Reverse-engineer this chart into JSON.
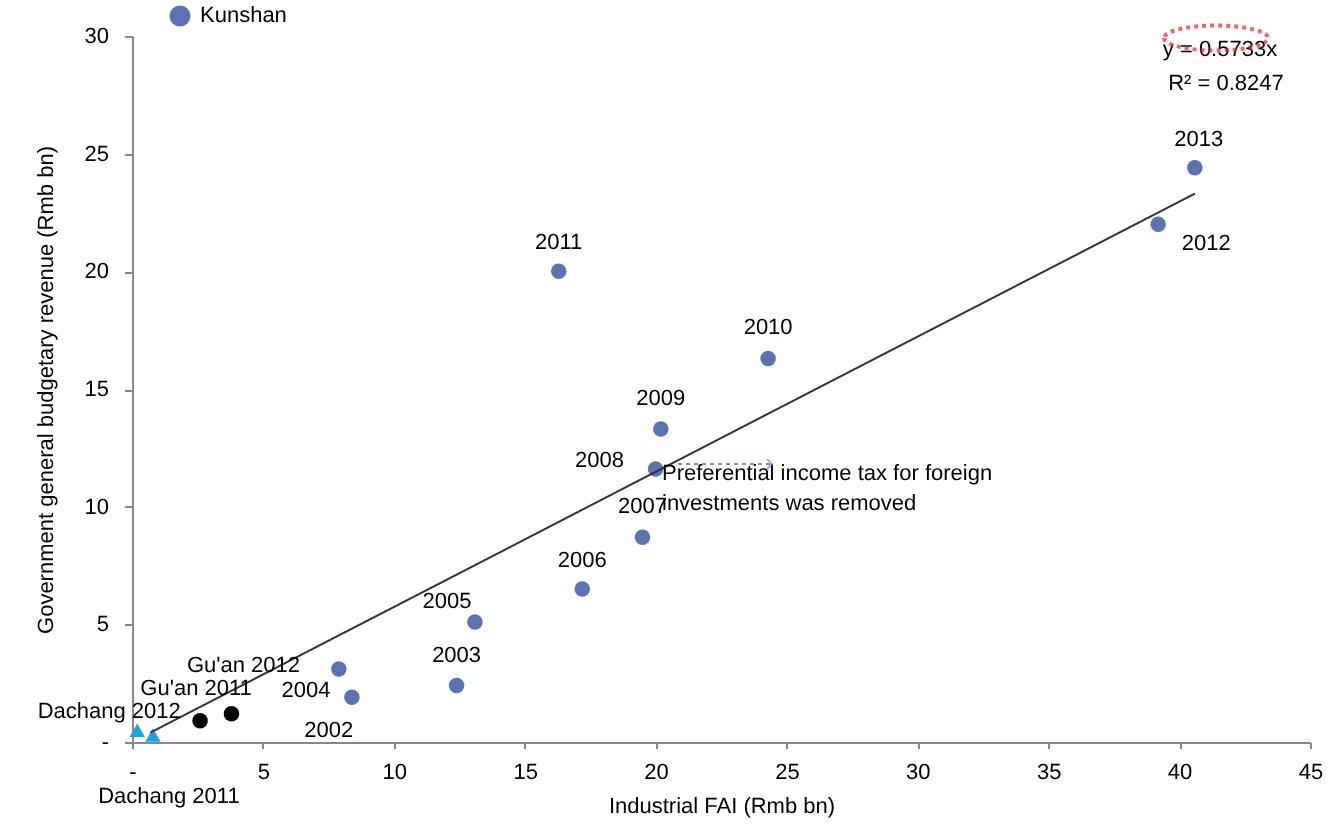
{
  "chart_data": {
    "type": "scatter",
    "xlabel": "Industrial FAI (Rmb bn)",
    "ylabel": "Government  general budgetary revenue (Rmb bn)",
    "xlim": [
      0,
      45
    ],
    "ylim": [
      0,
      30
    ],
    "xticks": [
      {
        "value": 0,
        "label": "-"
      },
      5,
      10,
      15,
      20,
      25,
      30,
      35,
      40,
      45
    ],
    "yticks": [
      {
        "value": 0,
        "label": "-"
      },
      5,
      10,
      15,
      20,
      25,
      30
    ],
    "grid": false,
    "legend": "top left",
    "marker": "circle",
    "series": [
      {
        "name": "Kunshan",
        "color": "#5b72b3",
        "x": [
          7.9,
          8.4,
          12.4,
          13.1,
          16.3,
          17.2,
          19.5,
          20.0,
          20.2,
          24.3,
          39.2,
          40.6
        ],
        "values": [
          3.1,
          1.9,
          2.4,
          5.1,
          20.0,
          6.5,
          8.7,
          11.6,
          13.3,
          16.3,
          22.0,
          24.4
        ]
      },
      {
        "color": "#000000",
        "x": [
          2.6,
          3.8
        ],
        "values": [
          0.9,
          1.2
        ]
      },
      {
        "color": "#1aa3e8",
        "marker": "triangle",
        "x": [
          0.2,
          0.8
        ],
        "values": [
          0.5,
          0.3
        ]
      },
      {
        "type": "line",
        "marker": "none",
        "color": "#333333",
        "x": [
          0.7,
          40.6
        ],
        "values": [
          0.4,
          23.3
        ]
      }
    ],
    "annotations": [
      {
        "text": "2013",
        "x": 40.6,
        "y": 24.4
      },
      {
        "text": "2012",
        "x": 39.2,
        "y": 22.0
      },
      {
        "text": "2011",
        "x": 16.3,
        "y": 20.0
      },
      {
        "text": "2010",
        "x": 24.3,
        "y": 16.3
      },
      {
        "text": "2009",
        "x": 20.2,
        "y": 13.3
      },
      {
        "text": "2008",
        "x": 20.0,
        "y": 11.6
      },
      {
        "text": "2007",
        "x": 19.5,
        "y": 8.7
      },
      {
        "text": "2006",
        "x": 17.2,
        "y": 6.5
      },
      {
        "text": "2005",
        "x": 13.1,
        "y": 5.1
      },
      {
        "text": "2003",
        "x": 12.4,
        "y": 2.4
      },
      {
        "text": "2004",
        "x": 8.4,
        "y": 1.9
      },
      {
        "text": "2002",
        "x": 7.9,
        "y": 3.1
      },
      {
        "text": "Gu'an 2012",
        "x": 3.8,
        "y": 1.2
      },
      {
        "text": "Gu'an 2011",
        "x": 2.6,
        "y": 0.9
      },
      {
        "text": "Dachang 2012",
        "x": 0.2,
        "y": 0.5
      },
      {
        "text": "Dachang 2011",
        "x": 0.8,
        "y": 0.3
      },
      "Preferential income  tax for foreign investments was removed",
      "y = 0.5733x",
      "R² = 0.8247"
    ]
  }
}
